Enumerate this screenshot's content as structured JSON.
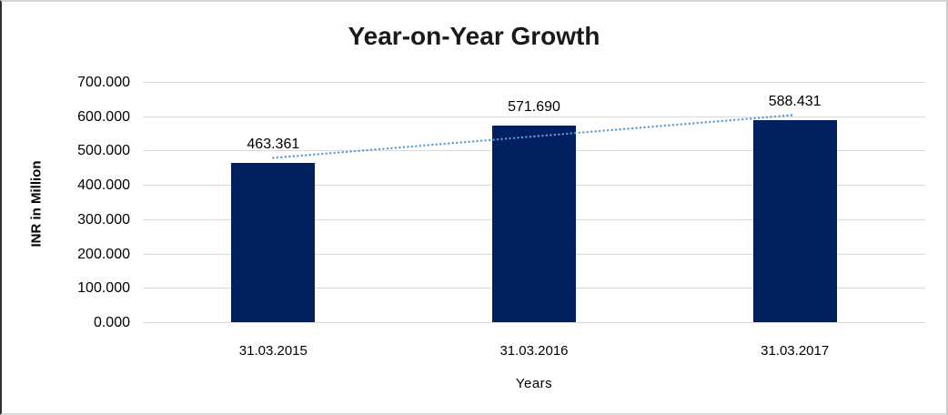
{
  "chart_data": {
    "type": "bar",
    "title": "Year-on-Year Growth",
    "xlabel": "Years",
    "ylabel": "INR in Million",
    "categories": [
      "31.03.2015",
      "31.03.2016",
      "31.03.2017"
    ],
    "values": [
      463.361,
      571.69,
      588.431
    ],
    "data_labels": [
      "463.361",
      "571.690",
      "588.431"
    ],
    "ylim": [
      0,
      700
    ],
    "ytick_step": 100,
    "ytick_labels": [
      "0.000",
      "100.000",
      "200.000",
      "300.000",
      "400.000",
      "500.000",
      "600.000",
      "700.000"
    ],
    "grid": true,
    "legend": "none",
    "trendline": {
      "type": "linear",
      "style": "dotted"
    },
    "colors": {
      "bar": "#002060",
      "gridline": "#d9d9d9",
      "trendline": "#5b9bd5",
      "title_text": "#1a1a1a",
      "axis_text": "#000000"
    }
  }
}
